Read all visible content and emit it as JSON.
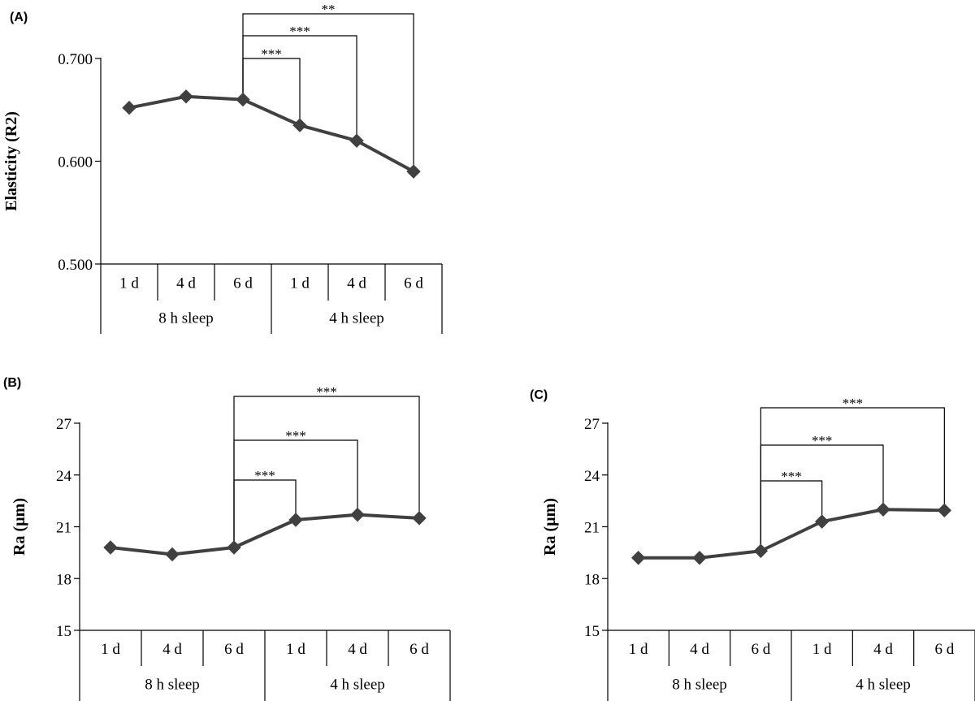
{
  "panels": [
    {
      "letter": "(A)",
      "ylabel": "Elasticity (R2)",
      "yticks": [
        "0.500",
        "0.600",
        "0.700"
      ],
      "groups": [
        {
          "label": "8 h sleep",
          "categories": [
            "1 d",
            "4 d",
            "6 d"
          ]
        },
        {
          "label": "4 h sleep",
          "categories": [
            "1 d",
            "4 d",
            "6 d"
          ]
        }
      ],
      "significance": [
        {
          "from": 2,
          "to": 3,
          "label": "***"
        },
        {
          "from": 2,
          "to": 4,
          "label": "***"
        },
        {
          "from": 2,
          "to": 5,
          "label": "**"
        }
      ]
    },
    {
      "letter": "(B)",
      "ylabel": "Ra (µm)",
      "yticks": [
        "15",
        "18",
        "21",
        "24",
        "27"
      ],
      "groups": [
        {
          "label": "8 h sleep",
          "categories": [
            "1 d",
            "4 d",
            "6 d"
          ]
        },
        {
          "label": "4 h sleep",
          "categories": [
            "1 d",
            "4 d",
            "6 d"
          ]
        }
      ],
      "significance": [
        {
          "from": 2,
          "to": 3,
          "label": "***"
        },
        {
          "from": 2,
          "to": 4,
          "label": "***"
        },
        {
          "from": 2,
          "to": 5,
          "label": "***"
        }
      ]
    },
    {
      "letter": "(C)",
      "ylabel": "Ra (µm)",
      "yticks": [
        "15",
        "18",
        "21",
        "24",
        "27"
      ],
      "groups": [
        {
          "label": "8 h sleep",
          "categories": [
            "1 d",
            "4 d",
            "6 d"
          ]
        },
        {
          "label": "4 h sleep",
          "categories": [
            "1 d",
            "4 d",
            "6 d"
          ]
        }
      ],
      "significance": [
        {
          "from": 2,
          "to": 3,
          "label": "***"
        },
        {
          "from": 2,
          "to": 4,
          "label": "***"
        },
        {
          "from": 2,
          "to": 5,
          "label": "***"
        }
      ]
    }
  ],
  "chart_data": [
    {
      "type": "line",
      "title": "",
      "xlabel": "",
      "ylabel": "Elasticity (R2)",
      "categories": [
        "1 d",
        "4 d",
        "6 d",
        "1 d",
        "4 d",
        "6 d"
      ],
      "category_groups": [
        "8 h sleep",
        "4 h sleep"
      ],
      "series": [
        {
          "values": [
            0.652,
            0.663,
            0.66,
            0.635,
            0.62,
            0.59
          ]
        }
      ],
      "ylim": [
        0.5,
        0.7
      ],
      "grid": false,
      "legend": "none",
      "marker": "diamond",
      "color": "#404040"
    },
    {
      "type": "line",
      "title": "",
      "xlabel": "",
      "ylabel": "Ra (µm)",
      "categories": [
        "1 d",
        "4 d",
        "6 d",
        "1 d",
        "4 d",
        "6 d"
      ],
      "category_groups": [
        "8 h sleep",
        "4 h sleep"
      ],
      "series": [
        {
          "values": [
            19.8,
            19.4,
            19.8,
            21.4,
            21.7,
            21.5
          ]
        }
      ],
      "ylim": [
        15,
        27
      ],
      "grid": false,
      "legend": "none",
      "marker": "diamond",
      "color": "#404040"
    },
    {
      "type": "line",
      "title": "",
      "xlabel": "",
      "ylabel": "Ra (µm)",
      "categories": [
        "1 d",
        "4 d",
        "6 d",
        "1 d",
        "4 d",
        "6 d"
      ],
      "category_groups": [
        "8 h sleep",
        "4 h sleep"
      ],
      "series": [
        {
          "values": [
            19.2,
            19.2,
            19.6,
            21.3,
            22.0,
            21.95
          ]
        }
      ],
      "ylim": [
        15,
        27
      ],
      "grid": false,
      "legend": "none",
      "marker": "diamond",
      "color": "#404040"
    }
  ]
}
